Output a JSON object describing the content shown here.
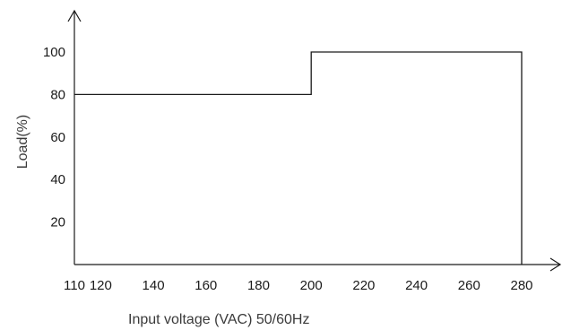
{
  "chart_data": {
    "type": "line",
    "title": "",
    "xlabel": "Input voltage (VAC)  50/60Hz",
    "ylabel": "Load(%)",
    "xlim": [
      110,
      280
    ],
    "ylim": [
      0,
      100
    ],
    "x_ticks": [
      110,
      120,
      140,
      160,
      180,
      200,
      220,
      240,
      260,
      280
    ],
    "y_ticks": [
      20,
      40,
      60,
      80,
      100
    ],
    "grid": false,
    "legend": "none",
    "series": [
      {
        "x": [
          110,
          200,
          200,
          280,
          280
        ],
        "y": [
          80,
          80,
          100,
          100,
          0
        ]
      }
    ],
    "colors": {
      "line": "#1a1a1a",
      "axis": "#1a1a1a"
    }
  }
}
